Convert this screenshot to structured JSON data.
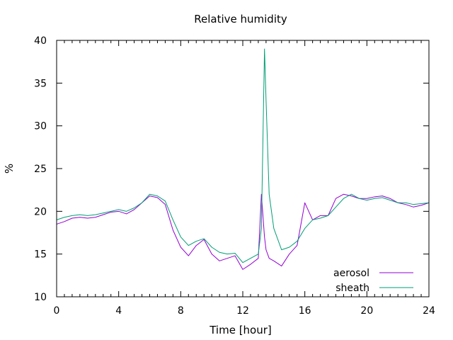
{
  "chart_data": {
    "type": "line",
    "title": "Relative humidity",
    "xlabel": "Time [hour]",
    "ylabel": "%",
    "xlim": [
      0,
      24
    ],
    "ylim": [
      10,
      40
    ],
    "xticks": [
      0,
      4,
      8,
      12,
      16,
      20,
      24
    ],
    "yticks": [
      10,
      15,
      20,
      25,
      30,
      35,
      40
    ],
    "grid": false,
    "legend_position": "bottom-right",
    "x": [
      0,
      0.5,
      1,
      1.5,
      2,
      2.5,
      3,
      3.5,
      4,
      4.5,
      5,
      5.5,
      6,
      6.5,
      7,
      7.5,
      8,
      8.5,
      9,
      9.5,
      10,
      10.5,
      11,
      11.5,
      12,
      12.5,
      13,
      13.2,
      13.4,
      13.5,
      13.7,
      14,
      14.5,
      15,
      15.5,
      16,
      16.5,
      17,
      17.5,
      18,
      18.5,
      19,
      19.5,
      20,
      20.5,
      21,
      21.5,
      22,
      22.5,
      23,
      23.5,
      24
    ],
    "series": [
      {
        "name": "aerosol",
        "color": "#9400d3",
        "values": [
          18.5,
          18.8,
          19.2,
          19.3,
          19.2,
          19.3,
          19.6,
          19.9,
          20.0,
          19.7,
          20.2,
          21.0,
          21.8,
          21.6,
          20.8,
          17.8,
          15.8,
          14.8,
          16.0,
          16.7,
          15.0,
          14.2,
          14.5,
          14.8,
          13.2,
          13.8,
          14.5,
          22.0,
          17.0,
          15.5,
          14.5,
          14.2,
          13.6,
          15.0,
          16.0,
          21.0,
          19.0,
          19.5,
          19.5,
          21.5,
          22.0,
          21.8,
          21.5,
          21.5,
          21.7,
          21.8,
          21.5,
          21.0,
          20.8,
          20.5,
          20.7,
          21.0
        ]
      },
      {
        "name": "sheath",
        "color": "#009e73",
        "values": [
          19.0,
          19.3,
          19.5,
          19.6,
          19.5,
          19.6,
          19.8,
          20.0,
          20.2,
          20.0,
          20.4,
          21.0,
          22.0,
          21.8,
          21.2,
          19.0,
          17.0,
          16.0,
          16.5,
          16.8,
          15.8,
          15.2,
          15.0,
          15.1,
          14.0,
          14.5,
          15.0,
          18.0,
          39.0,
          33.0,
          22.0,
          18.0,
          15.5,
          15.8,
          16.5,
          18.0,
          19.0,
          19.2,
          19.5,
          20.5,
          21.5,
          22.0,
          21.5,
          21.3,
          21.5,
          21.6,
          21.3,
          21.0,
          21.0,
          20.8,
          20.9,
          21.0
        ]
      }
    ]
  }
}
